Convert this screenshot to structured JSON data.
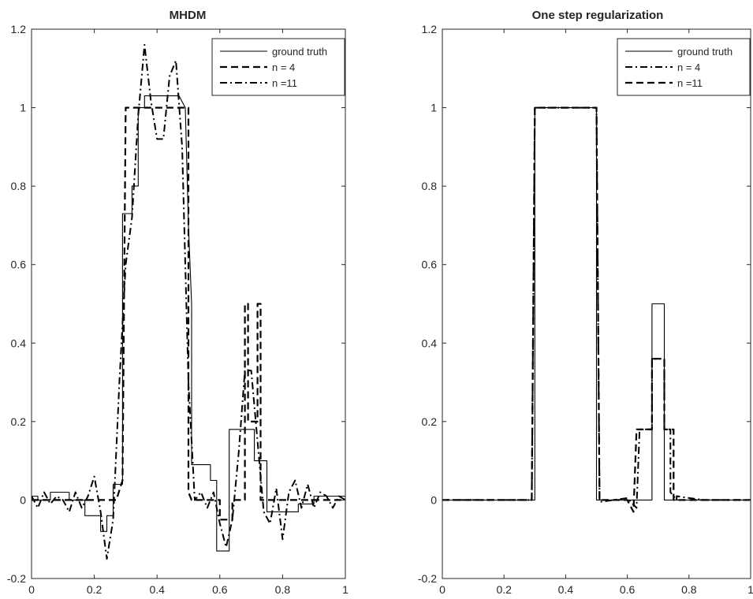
{
  "chart_data": [
    {
      "type": "line",
      "title": "MHDM",
      "xlim": [
        0,
        1
      ],
      "ylim": [
        -0.2,
        1.2
      ],
      "xticks": [
        0,
        0.2,
        0.4,
        0.6,
        0.8,
        1
      ],
      "xtick_labels": [
        "0",
        "0.2",
        "0.4",
        "0.6",
        "0.8",
        "1"
      ],
      "yticks": [
        -0.2,
        0,
        0.2,
        0.4,
        0.6,
        0.8,
        1,
        1.2
      ],
      "ytick_labels": [
        "-0.2",
        "0",
        "0.2",
        "0.4",
        "0.6",
        "0.8",
        "1",
        "1.2"
      ],
      "grid": false,
      "legend_position": "top-right",
      "series": [
        {
          "name": "ground truth",
          "style": "solid",
          "x": [
            0,
            0.02,
            0.02,
            0.06,
            0.06,
            0.12,
            0.12,
            0.17,
            0.17,
            0.22,
            0.22,
            0.24,
            0.24,
            0.26,
            0.26,
            0.29,
            0.29,
            0.32,
            0.32,
            0.34,
            0.34,
            0.36,
            0.36,
            0.47,
            0.49,
            0.5,
            0.51,
            0.51,
            0.57,
            0.57,
            0.59,
            0.59,
            0.63,
            0.63,
            0.71,
            0.71,
            0.75,
            0.75,
            0.8,
            0.8,
            0.85,
            0.85,
            0.9,
            0.9,
            0.95,
            0.95,
            1
          ],
          "y": [
            0.01,
            0.01,
            0,
            0,
            0.02,
            0.02,
            0,
            0,
            -0.04,
            -0.04,
            -0.08,
            -0.08,
            -0.04,
            -0.04,
            0.04,
            0.04,
            0.73,
            0.73,
            0.8,
            0.8,
            1.0,
            1.0,
            1.03,
            1.03,
            1.0,
            0.7,
            0.5,
            0.09,
            0.09,
            0.05,
            0.05,
            -0.13,
            -0.13,
            0.18,
            0.18,
            0.1,
            0.1,
            -0.03,
            -0.03,
            -0.03,
            -0.03,
            -0.01,
            -0.01,
            0.01,
            0.01,
            0.01,
            0.01
          ]
        },
        {
          "name": "n = 4",
          "style": "dashed",
          "x": [
            0,
            0.27,
            0.29,
            0.3,
            0.32,
            0.32,
            0.47,
            0.47,
            0.5,
            0.5,
            0.51,
            0.51,
            0.6,
            0.6,
            0.64,
            0.64,
            0.68,
            0.68,
            0.69,
            0.69,
            0.72,
            0.72,
            0.73,
            0.73,
            0.8,
            0.8,
            1
          ],
          "y": [
            0,
            0,
            0.05,
            1.0,
            1.0,
            1.0,
            1.0,
            1.0,
            1.0,
            0.02,
            0.0,
            0,
            0,
            -0.05,
            -0.05,
            0,
            0,
            0.5,
            0.5,
            0.2,
            0.2,
            0.5,
            0.5,
            0,
            0,
            0,
            0
          ]
        },
        {
          "name": "n =11",
          "style": "dashdot",
          "x": [
            0,
            0.02,
            0.04,
            0.06,
            0.08,
            0.1,
            0.12,
            0.14,
            0.16,
            0.18,
            0.2,
            0.22,
            0.24,
            0.26,
            0.28,
            0.3,
            0.32,
            0.34,
            0.36,
            0.38,
            0.4,
            0.42,
            0.44,
            0.46,
            0.48,
            0.5,
            0.52,
            0.54,
            0.56,
            0.58,
            0.6,
            0.62,
            0.64,
            0.66,
            0.68,
            0.7,
            0.72,
            0.74,
            0.76,
            0.78,
            0.8,
            0.82,
            0.84,
            0.86,
            0.88,
            0.9,
            0.92,
            0.94,
            0.96,
            0.98,
            1
          ],
          "y": [
            0.01,
            -0.02,
            0.02,
            -0.01,
            0.01,
            0,
            -0.03,
            0.02,
            -0.02,
            0.01,
            0.06,
            -0.03,
            -0.15,
            -0.05,
            0.3,
            0.6,
            0.72,
            0.98,
            1.16,
            1.02,
            0.92,
            0.92,
            1.08,
            1.12,
            0.9,
            0.3,
            0.0,
            0.02,
            -0.02,
            0.02,
            -0.06,
            -0.12,
            -0.05,
            0.12,
            0.33,
            0.33,
            0.15,
            -0.03,
            -0.06,
            0.03,
            -0.1,
            0.02,
            0.05,
            -0.02,
            0.04,
            -0.02,
            0.02,
            0.01,
            -0.02,
            0.01,
            0
          ]
        }
      ]
    },
    {
      "type": "line",
      "title": "One step regularization",
      "xlim": [
        0,
        1
      ],
      "ylim": [
        -0.2,
        1.2
      ],
      "xticks": [
        0,
        0.2,
        0.4,
        0.6,
        0.8,
        1
      ],
      "xtick_labels": [
        "0",
        "0.2",
        "0.4",
        "0.6",
        "0.8",
        "1"
      ],
      "yticks": [
        -0.2,
        0,
        0.2,
        0.4,
        0.6,
        0.8,
        1,
        1.2
      ],
      "ytick_labels": [
        "-0.2",
        "0",
        "0.2",
        "0.4",
        "0.6",
        "0.8",
        "1",
        "1.2"
      ],
      "grid": false,
      "legend_position": "top-right",
      "series": [
        {
          "name": "ground truth",
          "style": "solid",
          "x": [
            0,
            0.3,
            0.3,
            0.5,
            0.5,
            0.68,
            0.68,
            0.72,
            0.72,
            1
          ],
          "y": [
            0,
            0,
            1,
            1,
            0,
            0,
            0.5,
            0.5,
            0,
            0
          ]
        },
        {
          "name": "n = 4",
          "style": "dashdot",
          "x": [
            0,
            0.29,
            0.3,
            0.5,
            0.51,
            0.6,
            0.63,
            0.64,
            0.66,
            0.66,
            0.68,
            0.68,
            0.72,
            0.72,
            0.74,
            0.74,
            0.76,
            0.76,
            0.8,
            0.85,
            0.9,
            1
          ],
          "y": [
            0,
            0,
            1.0,
            1.0,
            -0.005,
            0.005,
            -0.02,
            0.18,
            0.18,
            0.18,
            0.18,
            0.36,
            0.36,
            0.18,
            0.18,
            0.02,
            0.0,
            0.01,
            0.005,
            0,
            0,
            0
          ]
        },
        {
          "name": "n =11",
          "style": "dashed",
          "x": [
            0,
            0.29,
            0.3,
            0.5,
            0.51,
            0.6,
            0.62,
            0.63,
            0.65,
            0.65,
            0.68,
            0.68,
            0.72,
            0.72,
            0.75,
            0.75,
            0.78,
            0.8,
            0.9,
            1
          ],
          "y": [
            0,
            0,
            1.0,
            1.0,
            0,
            0,
            -0.03,
            0.18,
            0.18,
            0.18,
            0.18,
            0.36,
            0.36,
            0.18,
            0.18,
            0,
            0,
            0,
            0,
            0
          ]
        }
      ]
    }
  ]
}
